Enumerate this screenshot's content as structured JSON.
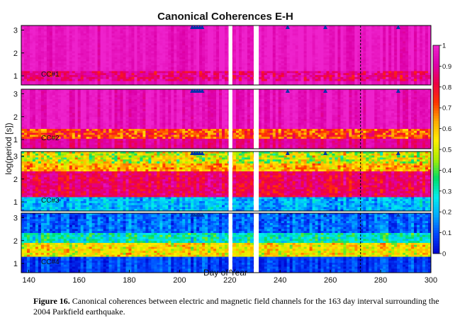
{
  "chart_data": {
    "type": "heatmap",
    "title": "Canonical Coherences E-H",
    "xlabel": "Day of Year",
    "ylabel": "log(period [s])",
    "xlim": [
      137,
      300
    ],
    "x_ticks": [
      "140",
      "160",
      "180",
      "200",
      "220",
      "240",
      "260",
      "280",
      "300"
    ],
    "y_ticks": [
      "1",
      "2",
      "3"
    ],
    "ylim": [
      0.6,
      3.2
    ],
    "colorbar": {
      "range": [
        0,
        1
      ],
      "ticks": [
        "0",
        "0.1",
        "0.2",
        "0.3",
        "0.4",
        "0.5",
        "0.6",
        "0.7",
        "0.8",
        "0.9",
        "1"
      ],
      "colors": [
        "#0000cc",
        "#0044ff",
        "#00aaff",
        "#00eeee",
        "#00dd66",
        "#aaee00",
        "#ffee00",
        "#ffaa00",
        "#ff3300",
        "#ee0044",
        "#dd00aa",
        "#ee22cc"
      ]
    },
    "data_gaps_days": [
      [
        219.5,
        221.0
      ],
      [
        229.5,
        231.5
      ]
    ],
    "dashed_line_day": 272,
    "event_markers_days": [
      205,
      206,
      207,
      208,
      209,
      243,
      258,
      287
    ],
    "marker_color": "#0033aa",
    "panels": [
      {
        "label": "CC#1",
        "description_levels": {
          "long_period": 0.97,
          "band": 0.87,
          "short_period": 0.95
        }
      },
      {
        "label": "CC#2",
        "description_levels": {
          "long_period": 0.96,
          "band": 0.72,
          "short_period": 0.85
        }
      },
      {
        "label": "CC#3",
        "description_levels": {
          "long_period": 0.5,
          "band": 0.84,
          "short_period": 0.2
        }
      },
      {
        "label": "CC#4",
        "description_levels": {
          "long_period": 0.12,
          "band": 0.55,
          "short_period": 0.05
        }
      }
    ]
  },
  "caption": {
    "label": "Figure 16.",
    "text": "Canonical coherences between electric and magnetic field channels for the 163 day interval surrounding the 2004 Parkfield earthquake."
  }
}
